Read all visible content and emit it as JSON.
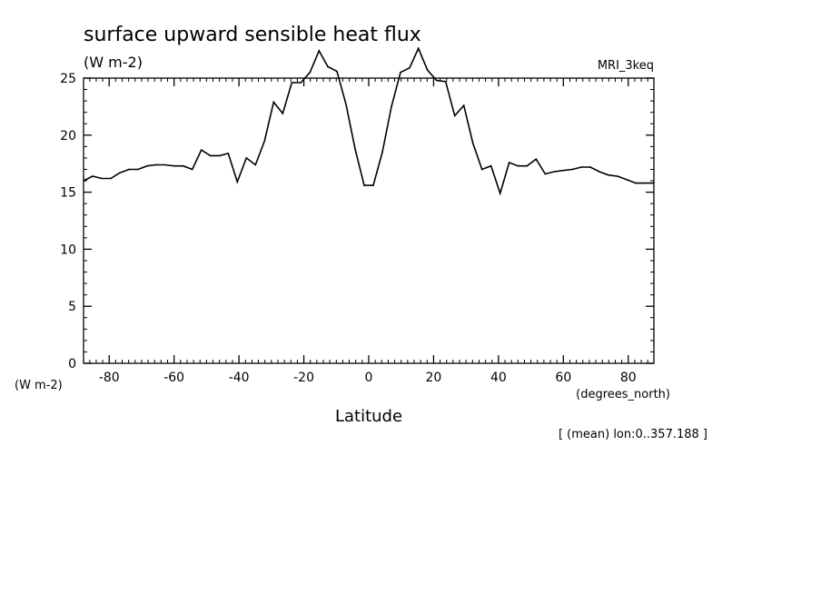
{
  "chart_data": {
    "type": "line",
    "title": "surface upward sensible heat flux",
    "units_label": "(W m-2)",
    "model_label": "MRI_3keq",
    "ylabel": "(W m-2)",
    "xlabel": "Latitude",
    "x_units": "(degrees_north)",
    "annotation": "[ (mean) lon:0..357.188 ]",
    "xlim": [
      -87.9,
      87.9
    ],
    "ylim": [
      0,
      25
    ],
    "x_ticks": [
      -80,
      -60,
      -40,
      -20,
      0,
      20,
      40,
      60,
      80
    ],
    "x_tick_labels": [
      "-80",
      "-60",
      "-40",
      "-20",
      "0",
      "20",
      "40",
      "60",
      "80"
    ],
    "y_ticks": [
      0,
      5,
      10,
      15,
      20,
      25
    ],
    "y_tick_labels": [
      "0",
      "5",
      "10",
      "15",
      "20",
      "25"
    ],
    "grid": false,
    "series": [
      {
        "x": [
          -87.9,
          -85.1,
          -82.3,
          -79.5,
          -76.7,
          -73.9,
          -71.1,
          -68.3,
          -65.6,
          -62.8,
          -60.0,
          -57.2,
          -54.4,
          -51.6,
          -48.8,
          -46.0,
          -43.3,
          -40.5,
          -37.7,
          -34.9,
          -32.1,
          -29.3,
          -26.5,
          -23.7,
          -20.9,
          -18.1,
          -15.3,
          -12.6,
          -9.8,
          -7.0,
          -4.2,
          -1.4,
          1.4,
          4.2,
          7.0,
          9.8,
          12.6,
          15.3,
          18.1,
          20.9,
          23.7,
          26.5,
          29.3,
          32.1,
          34.9,
          37.7,
          40.5,
          43.3,
          46.0,
          48.8,
          51.6,
          54.4,
          57.2,
          60.0,
          62.8,
          65.6,
          68.3,
          71.1,
          73.9,
          76.7,
          79.5,
          82.3,
          85.1,
          87.9
        ],
        "values": [
          16.0,
          16.4,
          16.2,
          16.2,
          16.7,
          17.0,
          17.0,
          17.3,
          17.4,
          17.4,
          17.3,
          17.3,
          17.0,
          18.7,
          18.2,
          18.2,
          18.4,
          15.9,
          18.0,
          17.4,
          19.5,
          22.9,
          21.9,
          24.6,
          24.6,
          25.5,
          27.4,
          26.0,
          25.6,
          22.7,
          18.8,
          15.6,
          15.6,
          18.5,
          22.5,
          25.5,
          25.9,
          27.6,
          25.7,
          24.8,
          24.7,
          21.7,
          22.6,
          19.3,
          17.0,
          17.3,
          14.9,
          17.6,
          17.3,
          17.3,
          17.9,
          16.6,
          16.8,
          16.9,
          17.0,
          17.2,
          17.2,
          16.8,
          16.5,
          16.4,
          16.1,
          15.8,
          15.8,
          15.8
        ]
      }
    ]
  }
}
